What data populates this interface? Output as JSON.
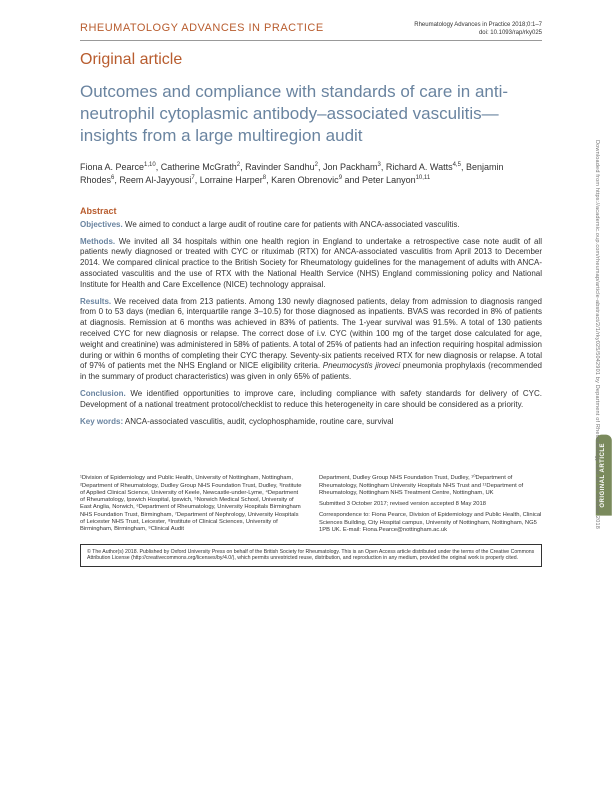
{
  "journal": {
    "name": "RHEUMATOLOGY ADVANCES IN PRACTICE",
    "citation": "Rheumatology Advances in Practice 2018;0:1–7",
    "doi": "doi: 10.1093/rap/rky025"
  },
  "article_type": "Original article",
  "title": "Outcomes and compliance with standards of care in anti-neutrophil cytoplasmic antibody–associated vasculitis—insights from a large multiregion audit",
  "authors_html": "Fiona A. Pearce<sup>1,10</sup>, Catherine McGrath<sup>2</sup>, Ravinder Sandhu<sup>2</sup>, Jon Packham<sup>3</sup>, Richard A. Watts<sup>4,5</sup>, Benjamin Rhodes<sup>6</sup>, Reem Al-Jayyousi<sup>7</sup>, Lorraine Harper<sup>8</sup>, Karen Obrenovic<sup>9</sup> and Peter Lanyon<sup>10,11</sup>",
  "abstract": {
    "heading": "Abstract",
    "objectives": "We aimed to conduct a large audit of routine care for patients with ANCA-associated vasculitis.",
    "methods": "We invited all 34 hospitals within one health region in England to undertake a retrospective case note audit of all patients newly diagnosed or treated with CYC or rituximab (RTX) for ANCA-associated vasculitis from April 2013 to December 2014. We compared clinical practice to the British Society for Rheumatology guidelines for the management of adults with ANCA-associated vasculitis and the use of RTX with the National Health Service (NHS) England commissioning policy and National Institute for Health and Care Excellence (NICE) technology appraisal.",
    "results_prefix": "We received data from 213 patients. Among 130 newly diagnosed patients, delay from admission to diagnosis ranged from 0 to 53 days (median 6, interquartile range 3–10.5) for those diagnosed as inpatients. BVAS was recorded in 8% of patients at diagnosis. Remission at 6 months was achieved in 83% of patients. The 1-year survival was 91.5%. A total of 130 patients received CYC for new diagnosis or relapse. The correct dose of i.v. CYC (within 100 mg of the target dose calculated for age, weight and creatinine) was administered in 58% of patients. A total of 25% of patients had an infection requiring hospital admission during or within 6 months of completing their CYC therapy. Seventy-six patients received RTX for new diagnosis or relapse. A total of 97% of patients met the NHS England or NICE eligibility criteria. ",
    "results_ital": "Pneumocystis jiroveci",
    "results_suffix": " pneumonia prophylaxis (recommended in the summary of product characteristics) was given in only 65% of patients.",
    "conclusion": "We identified opportunities to improve care, including compliance with safety standards for delivery of CYC. Development of a national treatment protocol/checklist to reduce this heterogeneity in care should be considered as a priority.",
    "keywords_label": "Key words:",
    "keywords": " ANCA-associated vasculitis, audit, cyclophosphamide, routine care, survival"
  },
  "affiliations": {
    "left": "¹Division of Epidemiology and Public Health, University of Nottingham, Nottingham, ²Department of Rheumatology, Dudley Group NHS Foundation Trust, Dudley, ³Institute of Applied Clinical Science, University of Keele, Newcastle-under-Lyme, ⁴Department of Rheumatology, Ipswich Hospital, Ipswich, ⁵Norwich Medical School, University of East Anglia, Norwich, ⁶Department of Rheumatology, University Hospitals Birmingham NHS Foundation Trust, Birmingham, ⁷Department of Nephrology, University Hospitals of Leicester NHS Trust, Leicester, ⁸Institute of Clinical Sciences, University of Birmingham, Birmingham, ⁹Clinical Audit",
    "right_dept": "Department, Dudley Group NHS Foundation Trust, Dudley, ¹⁰Department of Rheumatology, Nottingham University Hospitals NHS Trust and ¹¹Department of Rheumatology, Nottingham NHS Treatment Centre, Nottingham, UK",
    "submitted": "Submitted 3 October 2017; revised version accepted 8 May 2018",
    "correspondence": "Correspondence to: Fiona Pearce, Division of Epidemiology and Public Health, Clinical Sciences Building, City Hospital campus, University of Nottingham, Nottingham, NG5 1PB UK. E-mail: Fiona.Pearce@nottingham.ac.uk"
  },
  "license": "© The Author(s) 2018. Published by Oxford University Press on behalf of the British Society for Rheumatology. This is an Open Access article distributed under the terms of the Creative Commons Attribution License (http://creativecommons.org/licenses/by/4.0/), which permits unrestricted reuse, distribution, and reproduction in any medium, provided the original work is properly cited.",
  "side_tab": "ORIGINAL\nARTICLE",
  "download_strip": "Downloaded from https://academic.oup.com/rheumap/article-abstract/2/1/rky025/5042901 by Department of Rheumatology user on 31 October 2018",
  "colors": {
    "accent_orange": "#b85c2e",
    "accent_blue": "#6a84a0",
    "tab_green": "#7a8a5c",
    "text": "#333333",
    "bg": "#ffffff"
  }
}
